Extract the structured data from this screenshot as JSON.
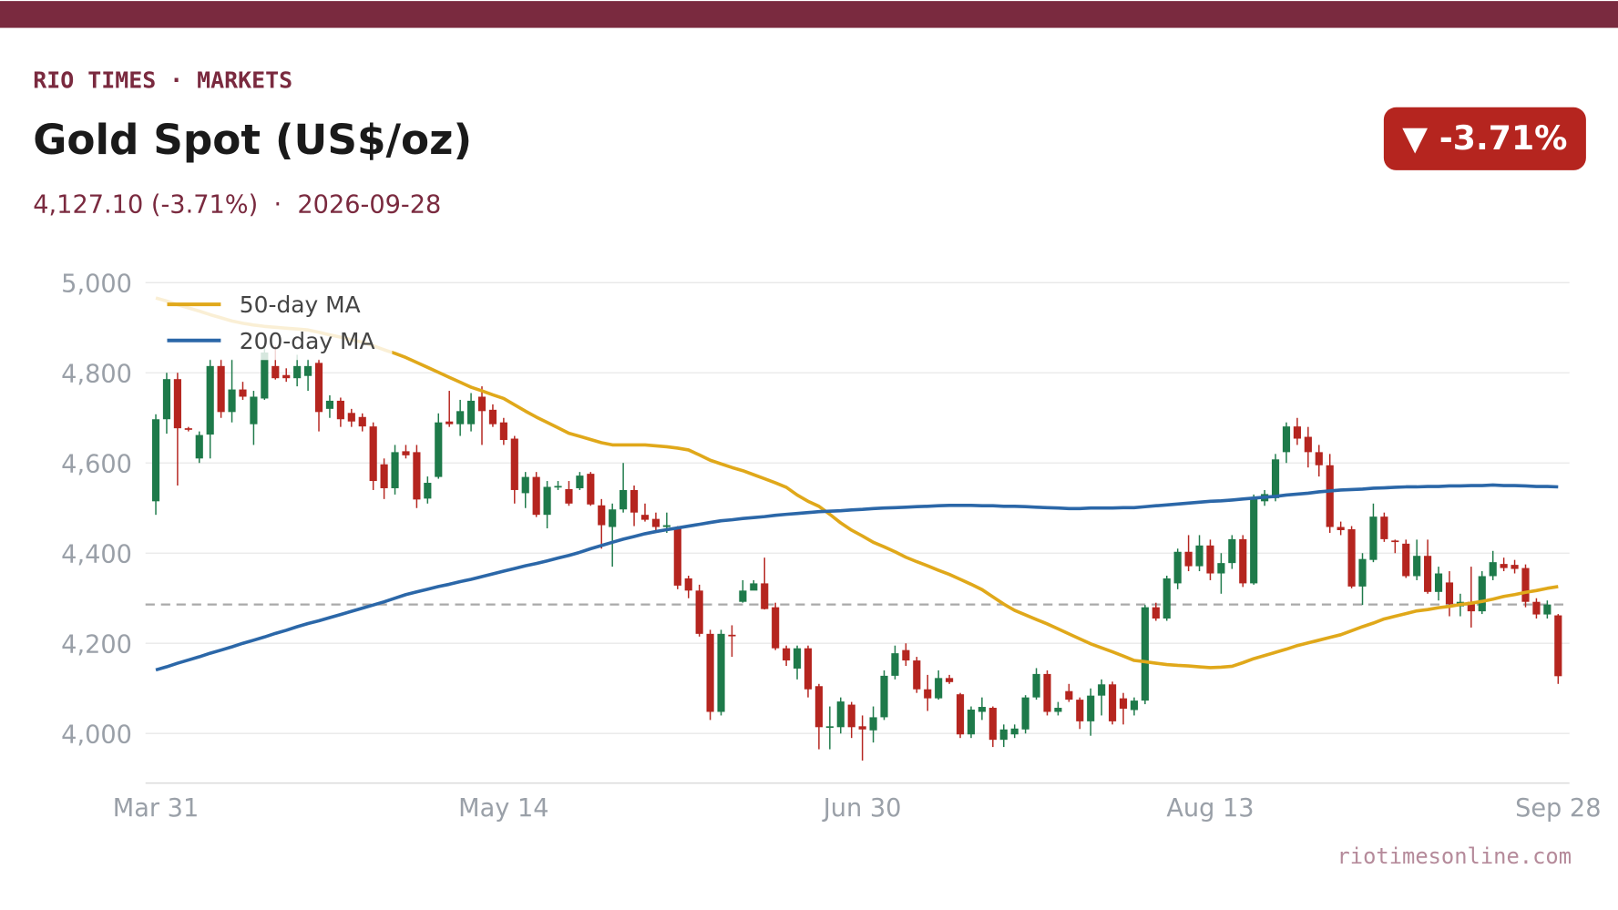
{
  "chart_data": {
    "type": "candlestick",
    "brand": "RIO TIMES · MARKETS",
    "title": "Gold Spot (US$/oz)",
    "subtitle": "4,127.10 (-3.71%)  ·  2026-09-28",
    "badge": "▼ -3.71%",
    "source": "riotimesonline.com",
    "categories": [
      "Mar 31",
      null,
      null,
      null,
      null,
      null,
      null,
      null,
      null,
      null,
      null,
      null,
      null,
      null,
      null,
      null,
      null,
      null,
      null,
      null,
      null,
      null,
      null,
      null,
      null,
      null,
      null,
      null,
      null,
      null,
      null,
      null,
      "May 14",
      null,
      null,
      null,
      null,
      null,
      null,
      null,
      null,
      null,
      null,
      null,
      null,
      null,
      null,
      null,
      null,
      null,
      null,
      null,
      null,
      null,
      null,
      null,
      null,
      null,
      null,
      null,
      null,
      null,
      null,
      null,
      null,
      "Jun 30",
      null,
      null,
      null,
      null,
      null,
      null,
      null,
      null,
      null,
      null,
      null,
      null,
      null,
      null,
      null,
      null,
      null,
      null,
      null,
      null,
      null,
      null,
      null,
      null,
      null,
      null,
      null,
      null,
      null,
      null,
      null,
      "Aug 13",
      null,
      null,
      null,
      null,
      null,
      null,
      null,
      null,
      null,
      null,
      null,
      null,
      null,
      null,
      null,
      null,
      null,
      null,
      null,
      null,
      null,
      null,
      null,
      null,
      null,
      null,
      null,
      null,
      null,
      null,
      null,
      "Sep 28"
    ],
    "open": [
      4515,
      4697,
      4786,
      4677,
      4610,
      4663,
      4815,
      4713,
      4763,
      4686,
      4743,
      4815,
      4795,
      4788,
      4793,
      4822,
      4720,
      4738,
      4711,
      4702,
      4681,
      4597,
      4544,
      4626,
      4624,
      4521,
      4569,
      4692,
      4686,
      4686,
      4747,
      4718,
      4690,
      4654,
      4533,
      4569,
      4485,
      4547,
      4542,
      4544,
      4576,
      4506,
      4458,
      4497,
      4540,
      4485,
      4476,
      4458,
      4458,
      4344,
      4317,
      4221,
      4048,
      4219,
      4292,
      4317,
      4333,
      4280,
      4189,
      4144,
      4189,
      4105,
      4014,
      4014,
      4064,
      4016,
      4007,
      4036,
      4128,
      4185,
      4162,
      4098,
      4078,
      4123,
      4087,
      3998,
      4048,
      4057,
      3986,
      3998,
      4009,
      4080,
      4132,
      4048,
      4094,
      4075,
      4027,
      4084,
      4109,
      4078,
      4052,
      4073,
      4280,
      4255,
      4333,
      4403,
      4371,
      4417,
      4355,
      4378,
      4431,
      4333,
      4515,
      4522,
      4624,
      4681,
      4658,
      4624,
      4595,
      4458,
      4453,
      4326,
      4385,
      4481,
      4428,
      4421,
      4349,
      4394,
      4314,
      4335,
      4282,
      4292,
      4271,
      4349,
      4376,
      4374,
      4367,
      4292,
      4264,
      4262
    ],
    "high": [
      4708,
      4800,
      4800,
      4680,
      4670,
      4830,
      4830,
      4830,
      4780,
      4760,
      4860,
      4860,
      4810,
      4840,
      4830,
      4830,
      4750,
      4745,
      4720,
      4710,
      4690,
      4610,
      4640,
      4640,
      4640,
      4570,
      4710,
      4760,
      4740,
      4755,
      4770,
      4730,
      4700,
      4660,
      4580,
      4580,
      4560,
      4560,
      4560,
      4580,
      4580,
      4520,
      4510,
      4600,
      4550,
      4510,
      4490,
      4490,
      4460,
      4350,
      4330,
      4230,
      4230,
      4240,
      4340,
      4340,
      4390,
      4290,
      4195,
      4195,
      4195,
      4110,
      4060,
      4080,
      4070,
      4040,
      4060,
      4140,
      4195,
      4200,
      4170,
      4130,
      4140,
      4130,
      4090,
      4060,
      4080,
      4060,
      4020,
      4020,
      4085,
      4145,
      4140,
      4070,
      4110,
      4080,
      4100,
      4120,
      4115,
      4090,
      4080,
      4285,
      4290,
      4350,
      4410,
      4440,
      4440,
      4430,
      4400,
      4440,
      4440,
      4530,
      4540,
      4620,
      4690,
      4700,
      4680,
      4640,
      4620,
      4470,
      4460,
      4400,
      4510,
      4490,
      4430,
      4430,
      4430,
      4430,
      4370,
      4360,
      4310,
      4370,
      4360,
      4405,
      4390,
      4385,
      4375,
      4300,
      4295,
      4265
    ],
    "low": [
      4485,
      4665,
      4550,
      4670,
      4600,
      4610,
      4700,
      4690,
      4740,
      4640,
      4740,
      4785,
      4780,
      4770,
      4760,
      4670,
      4700,
      4680,
      4680,
      4670,
      4540,
      4520,
      4530,
      4610,
      4500,
      4510,
      4565,
      4680,
      4660,
      4670,
      4640,
      4680,
      4640,
      4510,
      4500,
      4480,
      4455,
      4540,
      4505,
      4540,
      4505,
      4410,
      4370,
      4490,
      4460,
      4470,
      4450,
      4445,
      4320,
      4300,
      4215,
      4030,
      4040,
      4170,
      4290,
      4320,
      4275,
      4185,
      4150,
      4120,
      4080,
      3965,
      3965,
      4000,
      3990,
      3940,
      3980,
      4030,
      4120,
      4150,
      4090,
      4050,
      4075,
      4110,
      3990,
      3990,
      4030,
      3970,
      3970,
      3990,
      4000,
      4075,
      4040,
      4040,
      4070,
      4010,
      3995,
      4040,
      4020,
      4020,
      4040,
      4065,
      4250,
      4250,
      4320,
      4360,
      4360,
      4340,
      4310,
      4365,
      4325,
      4330,
      4505,
      4515,
      4600,
      4640,
      4590,
      4570,
      4445,
      4440,
      4322,
      4285,
      4380,
      4425,
      4400,
      4345,
      4340,
      4310,
      4295,
      4260,
      4260,
      4235,
      4265,
      4340,
      4360,
      4355,
      4280,
      4255,
      4255,
      4110
    ],
    "close": [
      4697,
      4786,
      4677,
      4675,
      4662,
      4815,
      4713,
      4763,
      4747,
      4747,
      4845,
      4788,
      4788,
      4815,
      4815,
      4713,
      4738,
      4697,
      4692,
      4681,
      4560,
      4544,
      4624,
      4617,
      4519,
      4556,
      4690,
      4686,
      4715,
      4738,
      4715,
      4686,
      4651,
      4540,
      4569,
      4485,
      4547,
      4549,
      4510,
      4572,
      4508,
      4462,
      4497,
      4540,
      4490,
      4474,
      4458,
      4462,
      4328,
      4317,
      4221,
      4048,
      4221,
      4216,
      4317,
      4333,
      4276,
      4189,
      4162,
      4189,
      4098,
      4014,
      4016,
      4071,
      4014,
      4009,
      4036,
      4128,
      4178,
      4162,
      4098,
      4078,
      4123,
      4114,
      3998,
      4053,
      4059,
      3986,
      4009,
      4011,
      4080,
      4132,
      4048,
      4057,
      4075,
      4027,
      4084,
      4109,
      4027,
      4055,
      4073,
      4280,
      4255,
      4344,
      4403,
      4371,
      4417,
      4355,
      4378,
      4431,
      4333,
      4522,
      4531,
      4608,
      4681,
      4654,
      4624,
      4595,
      4458,
      4451,
      4326,
      4387,
      4481,
      4431,
      4426,
      4349,
      4394,
      4314,
      4355,
      4287,
      4292,
      4271,
      4349,
      4380,
      4367,
      4365,
      4292,
      4264,
      4286.1,
      4127.1
    ],
    "up_color": "#1e7a4a",
    "down_color": "#b5251f",
    "series": [
      {
        "name": "50-day MA",
        "color": "#e0a81a",
        "values": [
          4966,
          4959,
          4951,
          4944,
          4937,
          4929,
          4922,
          4915,
          4910,
          4906,
          4903,
          4901,
          4899,
          4897,
          4895,
          4890,
          4884,
          4879,
          4873,
          4868,
          4860,
          4851,
          4843,
          4834,
          4823,
          4812,
          4801,
          4790,
          4779,
          4768,
          4760,
          4751,
          4743,
          4729,
          4715,
          4702,
          4690,
          4678,
          4666,
          4659,
          4652,
          4645,
          4640,
          4640,
          4640,
          4640,
          4638,
          4636,
          4633,
          4629,
          4618,
          4606,
          4598,
          4590,
          4583,
          4574,
          4565,
          4556,
          4546,
          4529,
          4515,
          4504,
          4486,
          4467,
          4451,
          4438,
          4424,
          4414,
          4403,
          4391,
          4381,
          4372,
          4362,
          4353,
          4342,
          4331,
          4319,
          4303,
          4287,
          4273,
          4263,
          4253,
          4243,
          4232,
          4221,
          4210,
          4199,
          4190,
          4181,
          4172,
          4162,
          4159,
          4156,
          4153,
          4151,
          4150,
          4148,
          4146,
          4147,
          4149,
          4157,
          4166,
          4173,
          4180,
          4187,
          4195,
          4201,
          4207,
          4213,
          4219,
          4228,
          4237,
          4245,
          4254,
          4260,
          4266,
          4272,
          4275,
          4279,
          4282,
          4286,
          4289,
          4293,
          4298,
          4304,
          4308,
          4313,
          4317,
          4322,
          4326
        ]
      },
      {
        "name": "200-day MA",
        "color": "#2b67a8",
        "values": [
          4141,
          4148,
          4156,
          4163,
          4170,
          4178,
          4185,
          4192,
          4200,
          4207,
          4214,
          4222,
          4229,
          4237,
          4244,
          4250,
          4257,
          4264,
          4271,
          4278,
          4285,
          4292,
          4300,
          4308,
          4314,
          4320,
          4326,
          4331,
          4337,
          4342,
          4348,
          4354,
          4360,
          4366,
          4372,
          4377,
          4383,
          4389,
          4395,
          4402,
          4410,
          4417,
          4424,
          4431,
          4437,
          4443,
          4448,
          4452,
          4456,
          4460,
          4464,
          4468,
          4472,
          4474,
          4477,
          4479,
          4481,
          4484,
          4486,
          4488,
          4490,
          4492,
          4493,
          4494,
          4496,
          4497,
          4499,
          4500,
          4501,
          4502,
          4503,
          4504,
          4505,
          4506,
          4506,
          4506,
          4505,
          4505,
          4504,
          4504,
          4503,
          4502,
          4501,
          4500,
          4499,
          4499,
          4500,
          4500,
          4500,
          4501,
          4501,
          4503,
          4505,
          4507,
          4509,
          4511,
          4513,
          4515,
          4516,
          4518,
          4520,
          4522,
          4524,
          4526,
          4529,
          4531,
          4533,
          4536,
          4538,
          4540,
          4541,
          4542,
          4544,
          4545,
          4546,
          4547,
          4547,
          4548,
          4548,
          4549,
          4549,
          4550,
          4550,
          4551,
          4550,
          4550,
          4549,
          4548,
          4548,
          4547
        ]
      }
    ],
    "reference_line": 4286.1,
    "ylim": [
      3890,
      5025
    ],
    "yticks": [
      {
        "value": 4000,
        "label": "4,000"
      },
      {
        "value": 4200,
        "label": "4,200"
      },
      {
        "value": 4400,
        "label": "4,400"
      },
      {
        "value": 4600,
        "label": "4,600"
      },
      {
        "value": 4800,
        "label": "4,800"
      },
      {
        "value": 5000,
        "label": "5,000"
      }
    ],
    "grid": true,
    "legend": "upper left"
  }
}
